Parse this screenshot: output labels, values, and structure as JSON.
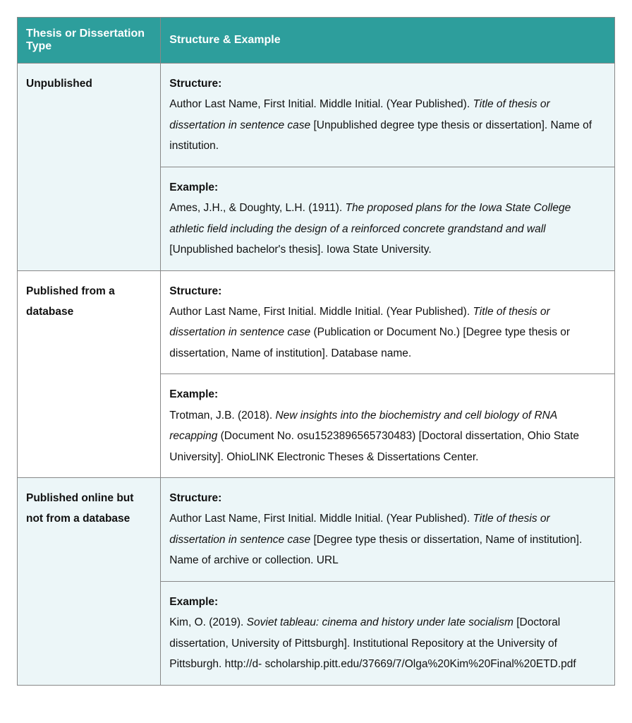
{
  "header": {
    "col1": "Thesis or Dissertation Type",
    "col2": "Structure & Example"
  },
  "rows": [
    {
      "type": "Unpublished",
      "even": true,
      "structure": {
        "label": "Structure:",
        "pre": "Author Last Name, First Initial. Middle Initial. (Year Published). ",
        "ital": "Title of thesis or dissertation in sentence case",
        "post": " [Unpublished degree type thesis or dissertation]. Name of institution."
      },
      "example": {
        "label": "Example:",
        "pre": "Ames, J.H., & Doughty, L.H. (1911). ",
        "ital": "The proposed plans for the Iowa State College athletic field including the design of a reinforced concrete grandstand and wall",
        "post": " [Unpublished bachelor's thesis]. Iowa State University."
      }
    },
    {
      "type": "Published from a database",
      "even": false,
      "structure": {
        "label": "Structure:",
        "pre": "Author Last Name, First Initial. Middle Initial. (Year Published). ",
        "ital": "Title of thesis or dissertation in sentence case",
        "post": " (Publication or Document No.) [Degree type thesis or dissertation, Name of institution]. Database name."
      },
      "example": {
        "label": "Example:",
        "pre": "Trotman, J.B. (2018). ",
        "ital": "New insights into the biochemistry and cell biology of RNA recapping",
        "post": " (Document No. osu1523896565730483) [Doctoral dissertation, Ohio State University]. OhioLINK Electronic Theses & Dissertations Center."
      }
    },
    {
      "type": "Published online but not from a database",
      "even": true,
      "structure": {
        "label": "Structure:",
        "pre": "Author Last Name, First Initial. Middle Initial. (Year Published). ",
        "ital": "Title of thesis or dissertation in sentence case",
        "post": " [Degree type thesis or dissertation, Name of institution]. Name of archive or collection. URL"
      },
      "example": {
        "label": "Example:",
        "pre": "Kim, O. (2019). ",
        "ital": "Soviet tableau: cinema and history under late socialism",
        "post": " [Doctoral dissertation, University of Pittsburgh]. Institutional Repository at the University of Pittsburgh. http://d- scholarship.pitt.edu/37669/7/Olga%20Kim%20Final%20ETD.pdf"
      }
    }
  ]
}
